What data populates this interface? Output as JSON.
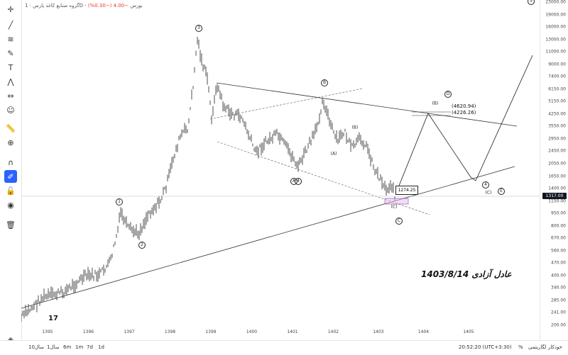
{
  "header": {
    "symbol_name": "گروه صنایع کاغذ پارس",
    "interval": "1D",
    "exchange": "بورس",
    "change": "−4.00 (−0.30%)"
  },
  "price_axis": {
    "labels": [
      "23000.00",
      "19000.00",
      "16000.00",
      "13000.00",
      "11000.00",
      "9000.00",
      "7400.00",
      "6150.00",
      "5150.00",
      "4250.00",
      "3550.00",
      "2950.00",
      "2450.00",
      "2050.00",
      "1650.00",
      "1400.00",
      "1150.00",
      "950.00",
      "800.00",
      "670.00",
      "560.00",
      "470.00",
      "400.00",
      "340.00",
      "285.00",
      "241.00",
      "200.00"
    ],
    "current_price": "1317.00"
  },
  "time_axis": {
    "labels": [
      "1395",
      "1396",
      "1397",
      "1398",
      "1399",
      "1400",
      "1401",
      "1402",
      "1403",
      "1404",
      "1405"
    ]
  },
  "waves": [
    {
      "label": "1",
      "type": "circle"
    },
    {
      "label": "2",
      "type": "circle"
    },
    {
      "label": "3",
      "type": "circle"
    },
    {
      "label": "4",
      "type": "circle"
    },
    {
      "label": "5",
      "type": "circle"
    },
    {
      "label": "A",
      "type": "circle"
    },
    {
      "label": "B",
      "type": "circle"
    },
    {
      "label": "C",
      "type": "circle"
    },
    {
      "label": "D",
      "type": "circle"
    },
    {
      "label": "E",
      "type": "circle"
    },
    {
      "label": "(A)",
      "type": "plain"
    },
    {
      "label": "(B)",
      "type": "plain"
    },
    {
      "label": "(C)",
      "type": "plain"
    },
    {
      "label": "(B)",
      "type": "plain"
    },
    {
      "label": "(C)",
      "type": "plain"
    },
    {
      "label": "4",
      "type": "circle"
    }
  ],
  "targets": {
    "t1": "(4620.94)",
    "t2": "(4226.26)"
  },
  "callout": "1274.25",
  "annotation": "عادل آزادی 1403/8/14",
  "bottom_bar": {
    "ranges": [
      "1d",
      "7d",
      "1m",
      "6m",
      "1سال",
      "10سال"
    ],
    "clock": "20:52:20 (UTC+3:30)",
    "percent": "%",
    "log": "لگاریتمی",
    "auto": "خودکار"
  },
  "colors": {
    "accent": "#2962ff",
    "candle": "#222222",
    "line": "#333333"
  }
}
